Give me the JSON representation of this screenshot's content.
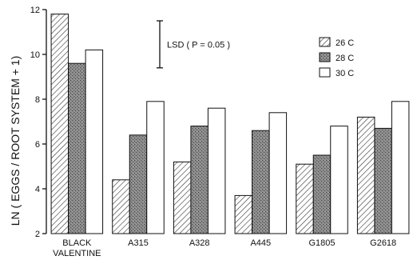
{
  "chart_data": {
    "type": "bar",
    "categories": [
      [
        "BLACK",
        "VALENTINE"
      ],
      [
        "A315"
      ],
      [
        "A328"
      ],
      [
        "A445"
      ],
      [
        "G1805"
      ],
      [
        "G2618"
      ]
    ],
    "series": [
      {
        "name": "26 C",
        "pattern": "hatch",
        "values": [
          11.8,
          4.4,
          5.2,
          3.7,
          5.1,
          7.2
        ]
      },
      {
        "name": "28 C",
        "pattern": "stipple",
        "values": [
          9.6,
          6.4,
          6.8,
          6.6,
          5.5,
          6.7
        ]
      },
      {
        "name": "30 C",
        "pattern": "open",
        "values": [
          10.2,
          7.9,
          7.6,
          7.4,
          6.8,
          7.9
        ]
      }
    ],
    "ylabel": "LN ( EGGS / ROOT SYSTEM + 1)",
    "ylim": [
      2,
      12
    ],
    "yticks": [
      2,
      4,
      6,
      8,
      10,
      12
    ],
    "lsd": {
      "label": "LSD ( P = 0.05 )",
      "from": 9.4,
      "to": 11.5
    },
    "legend_position": "top-right",
    "grid": false
  }
}
